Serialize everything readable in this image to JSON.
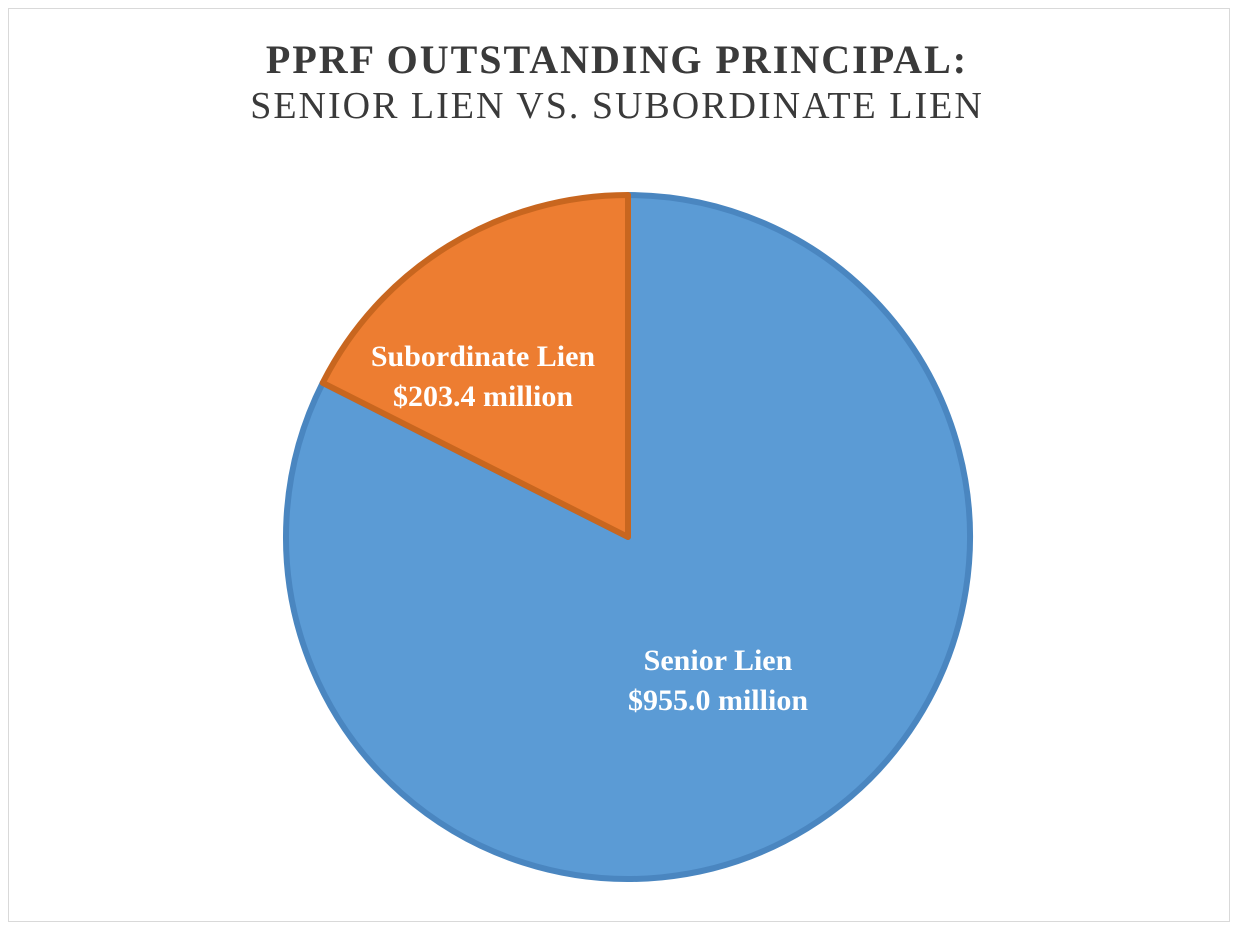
{
  "chart_data": {
    "type": "pie",
    "title": "PPRF OUTSTANDING PRINCIPAL:",
    "subtitle": "SENIOR LIEN VS. SUBORDINATE LIEN",
    "unit": "million",
    "slices": [
      {
        "name": "Senior Lien",
        "value": 955.0,
        "value_label": "$955.0 million",
        "color": "#5b9bd5"
      },
      {
        "name": "Subordinate Lien",
        "value": 203.4,
        "value_label": "$203.4 million",
        "color": "#ed7d31"
      }
    ],
    "legend": "none"
  }
}
